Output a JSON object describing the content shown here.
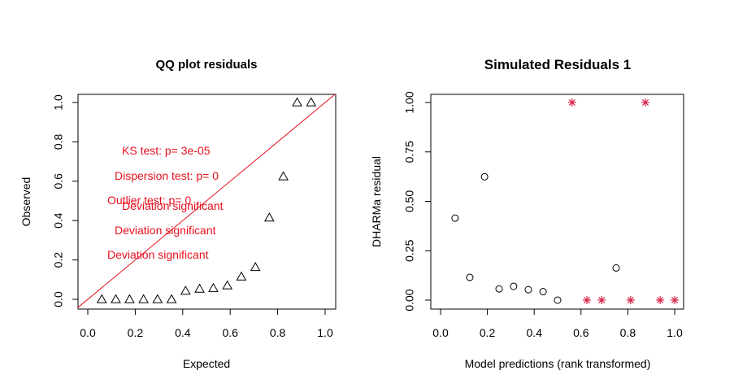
{
  "chart_data": [
    {
      "type": "scatter",
      "title": "QQ plot residuals",
      "xlabel": "Expected",
      "ylabel": "Observed",
      "xlim": [
        0.0,
        1.0
      ],
      "ylim": [
        0.0,
        1.0
      ],
      "xticks": [
        "0.0",
        "0.2",
        "0.4",
        "0.6",
        "0.8",
        "1.0"
      ],
      "yticks": [
        "0.0",
        "0.2",
        "0.4",
        "0.6",
        "0.8",
        "1.0"
      ],
      "marker": "triangle",
      "reference_line": {
        "from": [
          0,
          0
        ],
        "to": [
          1,
          1
        ],
        "color": "#e8101f"
      },
      "points": {
        "x": [
          0.059,
          0.118,
          0.176,
          0.235,
          0.294,
          0.353,
          0.412,
          0.471,
          0.529,
          0.588,
          0.647,
          0.706,
          0.765,
          0.824,
          0.882,
          0.941
        ],
        "y": [
          0.0,
          0.0,
          0.0,
          0.0,
          0.0,
          0.0,
          0.043,
          0.053,
          0.057,
          0.07,
          0.115,
          0.163,
          0.415,
          0.624,
          1.0,
          1.0
        ]
      },
      "annotations": [
        "KS test: p= 3e-05",
        "Deviation  significant",
        "Dispersion test: p= 0",
        "Deviation  significant",
        "Outlier test: p= 0",
        "Deviation  significant"
      ],
      "annotation_color": "#e8101f"
    },
    {
      "type": "scatter",
      "title": "Simulated Residuals 1",
      "xlabel": "Model predictions (rank transformed)",
      "ylabel": "DHARMa residual",
      "xlim": [
        0.0,
        1.0
      ],
      "ylim": [
        0.0,
        1.0
      ],
      "xticks": [
        "0.0",
        "0.2",
        "0.4",
        "0.6",
        "0.8",
        "1.0"
      ],
      "yticks": [
        "0.00",
        "0.25",
        "0.50",
        "0.75",
        "1.00"
      ],
      "series": [
        {
          "marker": "circle",
          "color": "#000000",
          "x": [
            0.062,
            0.125,
            0.188,
            0.25,
            0.312,
            0.375,
            0.438,
            0.5,
            0.75
          ],
          "y": [
            0.415,
            0.115,
            0.624,
            0.057,
            0.07,
            0.053,
            0.043,
            0.0,
            0.163
          ]
        },
        {
          "marker": "asterisk",
          "color": "#d6244a",
          "x": [
            0.562,
            0.625,
            0.688,
            0.812,
            0.875,
            0.938,
            1.0
          ],
          "y": [
            1.0,
            0.0,
            0.0,
            0.0,
            1.0,
            0.0,
            0.0
          ]
        }
      ]
    }
  ]
}
